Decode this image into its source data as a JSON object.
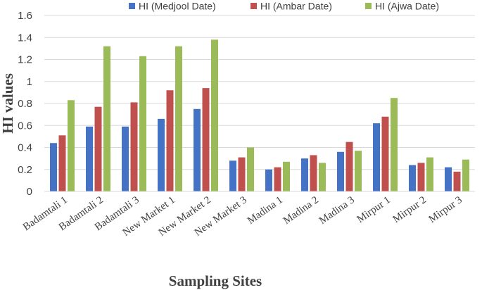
{
  "chart_data": {
    "type": "bar",
    "title": "",
    "xlabel": "Sampling Sites",
    "ylabel": "HI values",
    "ylim": [
      0,
      1.6
    ],
    "yticks": [
      "0",
      "0.2",
      "0.4",
      "0.6",
      "0.8",
      "1",
      "1.2",
      "1.4",
      "1.6"
    ],
    "grid": true,
    "legend_position": "top",
    "categories": [
      "Badamtali 1",
      "Badamtali 2",
      "Badamtali 3",
      "New Market 1",
      "New Market 2",
      "New Market 3",
      "Madina 1",
      "Madina 2",
      "Madina 3",
      "Mirpur 1",
      "Mirpur 2",
      "Mirpur 3"
    ],
    "series": [
      {
        "name": "HI (Medjool Date)",
        "color": "#4472C4",
        "values": [
          0.44,
          0.59,
          0.59,
          0.66,
          0.75,
          0.28,
          0.2,
          0.3,
          0.36,
          0.62,
          0.24,
          0.22
        ]
      },
      {
        "name": "HI (Ambar Date)",
        "color": "#C0504D",
        "values": [
          0.51,
          0.77,
          0.81,
          0.92,
          0.94,
          0.31,
          0.22,
          0.33,
          0.45,
          0.68,
          0.26,
          0.18
        ]
      },
      {
        "name": "HI (Ajwa Date)",
        "color": "#9BBB59",
        "values": [
          0.83,
          1.32,
          1.23,
          1.32,
          1.38,
          0.4,
          0.27,
          0.26,
          0.37,
          0.85,
          0.31,
          0.29
        ]
      }
    ]
  }
}
